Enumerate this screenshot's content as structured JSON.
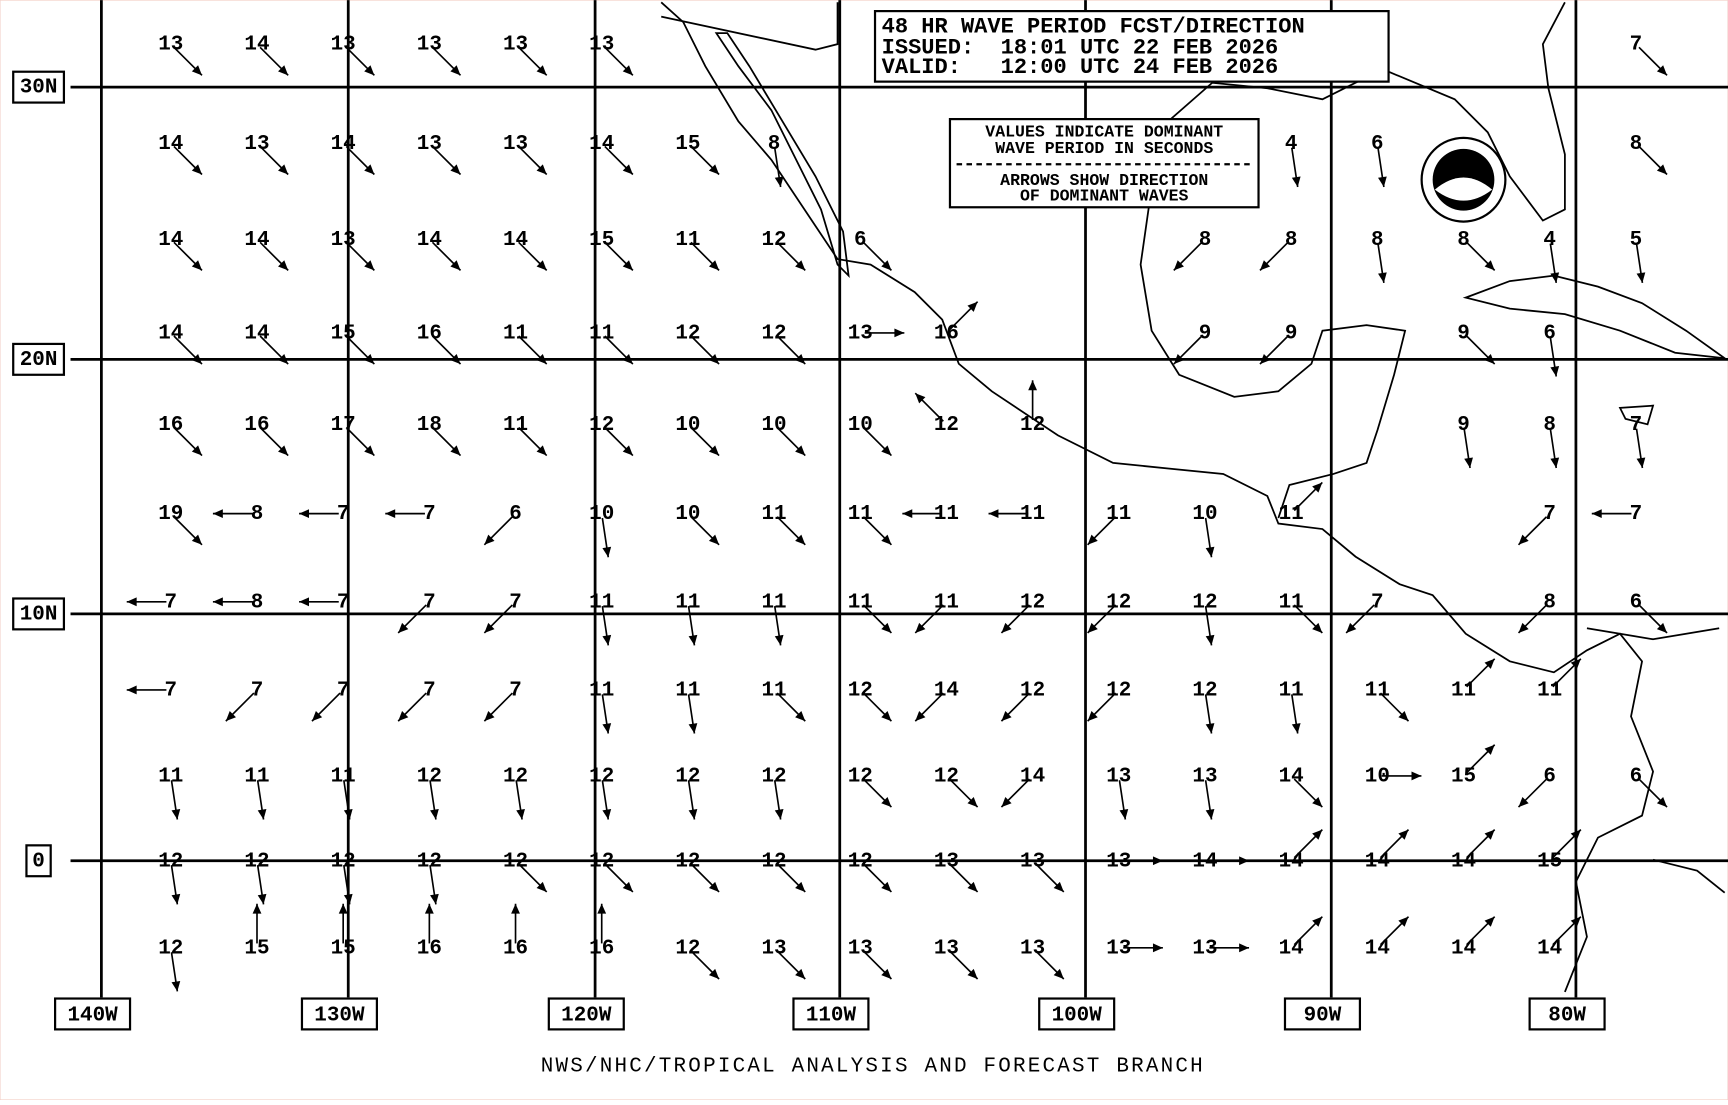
{
  "header": {
    "title": "48 HR WAVE PERIOD FCST/DIRECTION",
    "issued": "ISSUED:  18:01 UTC 22 FEB 2026",
    "valid": "VALID:   12:00 UTC 24 FEB 2026"
  },
  "legend": [
    "VALUES INDICATE DOMINANT",
    "WAVE PERIOD IN SECONDS",
    "ARROWS SHOW DIRECTION",
    "OF DOMINANT WAVES"
  ],
  "latitude_labels": [
    "30N",
    "20N",
    "10N",
    "0"
  ],
  "longitude_labels": [
    "140W",
    "130W",
    "120W",
    "110W",
    "100W",
    "90W",
    "80W"
  ],
  "grid": {
    "rows": [
      [
        13,
        14,
        13,
        13,
        13,
        13,
        null,
        null,
        null,
        null,
        null,
        null,
        null,
        null,
        null,
        null,
        null,
        7
      ],
      [
        14,
        13,
        14,
        13,
        13,
        14,
        15,
        8,
        null,
        null,
        null,
        null,
        null,
        4,
        6,
        null,
        null,
        8
      ],
      [
        14,
        14,
        13,
        14,
        14,
        15,
        11,
        12,
        6,
        null,
        null,
        null,
        8,
        8,
        8,
        8,
        4,
        5
      ],
      [
        14,
        14,
        15,
        16,
        11,
        11,
        12,
        12,
        13,
        16,
        null,
        null,
        9,
        9,
        null,
        9,
        6,
        null
      ],
      [
        16,
        16,
        17,
        18,
        11,
        12,
        10,
        10,
        10,
        12,
        12,
        null,
        null,
        null,
        null,
        9,
        8,
        7
      ],
      [
        19,
        8,
        7,
        7,
        6,
        10,
        10,
        11,
        11,
        11,
        11,
        11,
        10,
        11,
        null,
        null,
        7,
        7
      ],
      [
        7,
        8,
        7,
        7,
        7,
        11,
        11,
        11,
        11,
        11,
        12,
        12,
        12,
        11,
        7,
        null,
        8,
        6
      ],
      [
        7,
        7,
        7,
        7,
        7,
        11,
        11,
        11,
        12,
        14,
        12,
        12,
        12,
        11,
        11,
        11,
        11,
        null
      ],
      [
        11,
        11,
        11,
        12,
        12,
        12,
        12,
        12,
        12,
        12,
        14,
        13,
        13,
        14,
        10,
        15,
        6,
        6
      ],
      [
        12,
        12,
        12,
        12,
        12,
        12,
        12,
        12,
        12,
        13,
        13,
        13,
        14,
        14,
        14,
        14,
        15,
        null
      ],
      [
        12,
        15,
        15,
        16,
        16,
        16,
        12,
        13,
        13,
        13,
        13,
        13,
        13,
        14,
        14,
        14,
        14,
        null
      ]
    ]
  },
  "footer": "NWS/NHC/TROPICAL ANALYSIS AND FORECAST BRANCH"
}
